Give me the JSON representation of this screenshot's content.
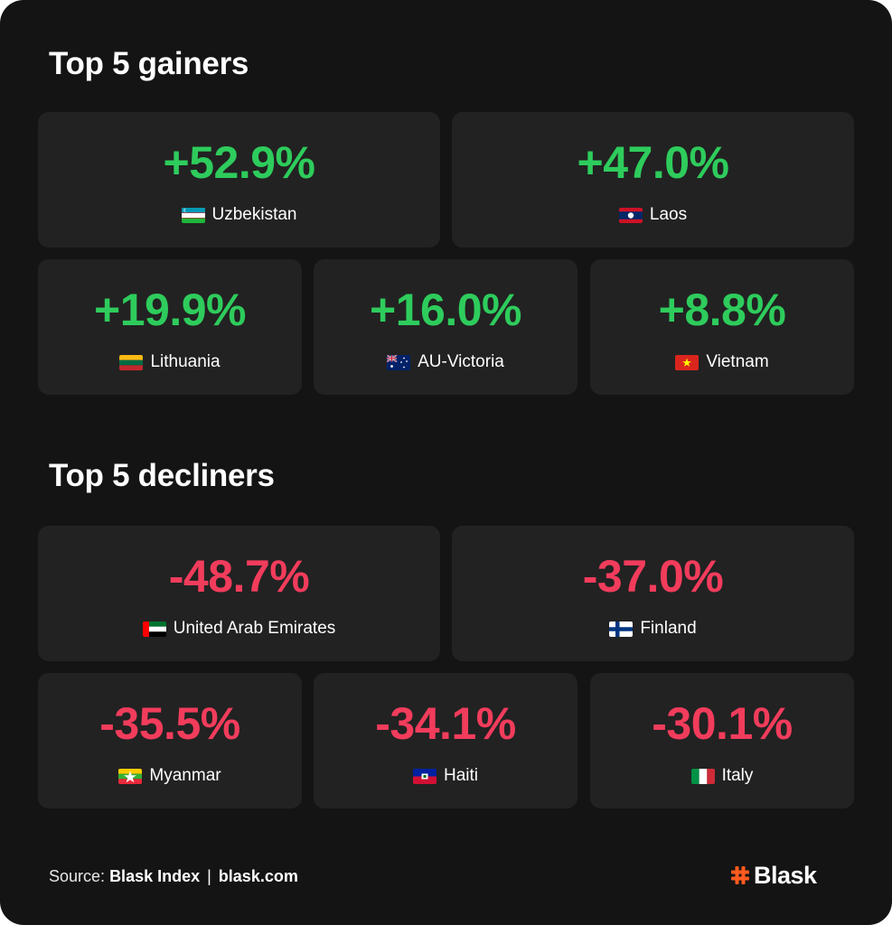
{
  "gainers": {
    "title": "Top 5 gainers",
    "items": [
      {
        "value": "+52.9%",
        "country": "Uzbekistan",
        "flag": "uzbekistan-flag-icon"
      },
      {
        "value": "+47.0%",
        "country": "Laos",
        "flag": "laos-flag-icon"
      },
      {
        "value": "+19.9%",
        "country": "Lithuania",
        "flag": "lithuania-flag-icon"
      },
      {
        "value": "+16.0%",
        "country": "AU-Victoria",
        "flag": "australia-flag-icon"
      },
      {
        "value": "+8.8%",
        "country": "Vietnam",
        "flag": "vietnam-flag-icon"
      }
    ]
  },
  "decliners": {
    "title": "Top 5 decliners",
    "items": [
      {
        "value": "-48.7%",
        "country": "United Arab Emirates",
        "flag": "uae-flag-icon"
      },
      {
        "value": "-37.0%",
        "country": "Finland",
        "flag": "finland-flag-icon"
      },
      {
        "value": "-35.5%",
        "country": "Myanmar",
        "flag": "myanmar-flag-icon"
      },
      {
        "value": "-34.1%",
        "country": "Haiti",
        "flag": "haiti-flag-icon"
      },
      {
        "value": "-30.1%",
        "country": "Italy",
        "flag": "italy-flag-icon"
      }
    ]
  },
  "footer": {
    "source_label": "Source:",
    "source_name": "Blask Index",
    "separator": "|",
    "source_url": "blask.com"
  },
  "logo": {
    "word": "Blask",
    "icon": "hash-logo-icon"
  },
  "colors": {
    "background": "#141414",
    "card": "#222222",
    "gain": "#2ecc5c",
    "loss": "#f23c5c",
    "brand": "#ff5a1f"
  }
}
